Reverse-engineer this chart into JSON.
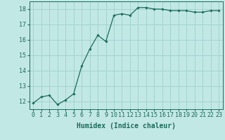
{
  "x": [
    0,
    1,
    2,
    3,
    4,
    5,
    6,
    7,
    8,
    9,
    10,
    11,
    12,
    13,
    14,
    15,
    16,
    17,
    18,
    19,
    20,
    21,
    22,
    23
  ],
  "y": [
    11.9,
    12.3,
    12.4,
    11.8,
    12.1,
    12.5,
    14.3,
    15.4,
    16.3,
    15.9,
    17.6,
    17.7,
    17.6,
    18.1,
    18.1,
    18.0,
    18.0,
    17.9,
    17.9,
    17.9,
    17.8,
    17.8,
    17.9,
    17.9
  ],
  "line_color": "#1a6b5a",
  "marker": "D",
  "marker_size": 1.8,
  "bg_color": "#c2e8e5",
  "grid_color": "#9ecfcb",
  "axis_color": "#1a6b5a",
  "xlabel": "Humidex (Indice chaleur)",
  "xlabel_fontsize": 7,
  "tick_fontsize": 6,
  "xlim": [
    -0.5,
    23.5
  ],
  "ylim": [
    11.5,
    18.5
  ],
  "yticks": [
    12,
    13,
    14,
    15,
    16,
    17,
    18
  ],
  "xticks": [
    0,
    1,
    2,
    3,
    4,
    5,
    6,
    7,
    8,
    9,
    10,
    11,
    12,
    13,
    14,
    15,
    16,
    17,
    18,
    19,
    20,
    21,
    22,
    23
  ]
}
